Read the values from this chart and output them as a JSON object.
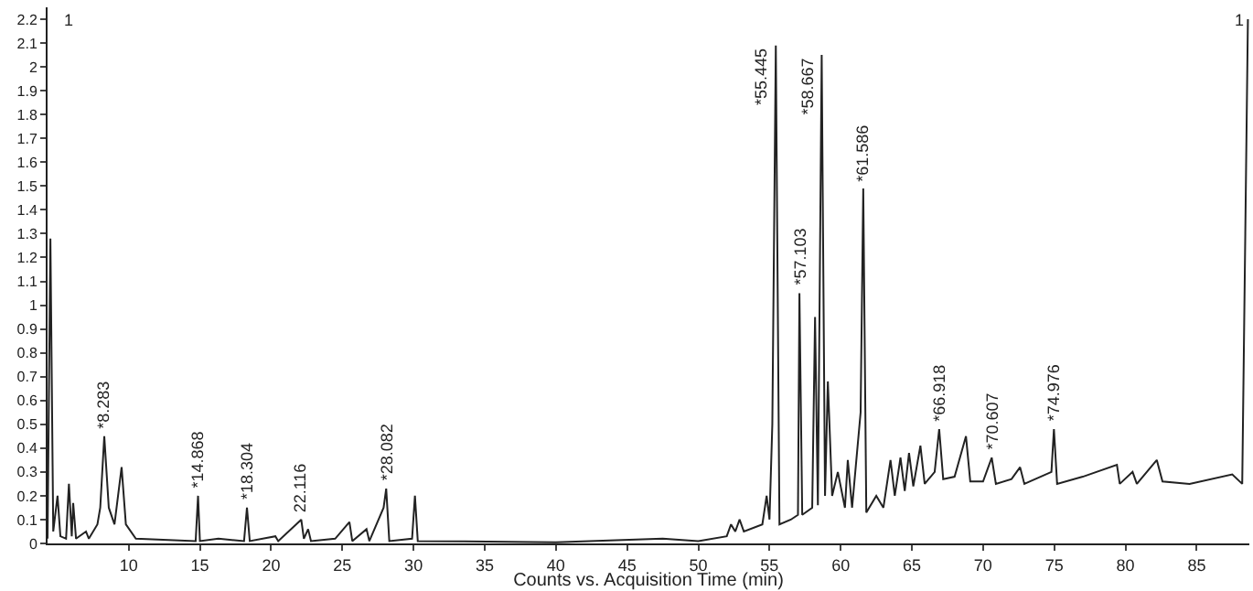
{
  "chart_data": {
    "type": "line",
    "xlabel": "Counts vs. Acquisition Time (min)",
    "x": [
      4.3,
      4.5,
      4.7,
      5.0,
      5.2,
      5.6,
      5.8,
      6.0,
      6.1,
      6.3,
      7.0,
      7.2,
      7.8,
      8.0,
      8.283,
      8.6,
      9.0,
      9.5,
      9.8,
      10.5,
      14.7,
      14.868,
      15.0,
      16.3,
      18.1,
      18.304,
      18.5,
      20.3,
      20.5,
      22.116,
      22.3,
      22.6,
      22.8,
      24.5,
      25.5,
      25.7,
      26.7,
      26.9,
      27.9,
      28.082,
      28.3,
      29.9,
      30.1,
      30.3,
      40,
      47.5,
      50,
      52,
      52.3,
      52.6,
      52.9,
      53.2,
      54.5,
      54.8,
      55.0,
      55.2,
      55.445,
      55.7,
      56.5,
      57.0,
      57.103,
      57.3,
      58.0,
      58.2,
      58.4,
      58.667,
      58.9,
      59.1,
      59.4,
      59.8,
      60.3,
      60.5,
      60.8,
      61.4,
      61.586,
      61.8,
      62.5,
      63.0,
      63.5,
      63.8,
      64.2,
      64.5,
      64.8,
      65.1,
      65.6,
      65.9,
      66.6,
      66.918,
      67.2,
      68.0,
      68.8,
      69.1,
      70.0,
      70.607,
      70.9,
      72.0,
      72.6,
      72.9,
      74.8,
      74.976,
      75.2,
      77,
      79.4,
      79.6,
      80.5,
      80.8,
      82.2,
      82.6,
      84.5,
      87.5,
      88.2,
      88.6
    ],
    "series": [
      {
        "color": "#222222",
        "values": [
          0.02,
          1.28,
          0.05,
          0.2,
          0.03,
          0.02,
          0.25,
          0.03,
          0.17,
          0.02,
          0.05,
          0.02,
          0.08,
          0.15,
          0.45,
          0.15,
          0.08,
          0.32,
          0.08,
          0.02,
          0.01,
          0.2,
          0.01,
          0.02,
          0.01,
          0.15,
          0.01,
          0.03,
          0.01,
          0.1,
          0.02,
          0.06,
          0.01,
          0.02,
          0.09,
          0.01,
          0.06,
          0.01,
          0.15,
          0.23,
          0.01,
          0.02,
          0.2,
          0.01,
          0.005,
          0.02,
          0.01,
          0.03,
          0.08,
          0.05,
          0.1,
          0.05,
          0.08,
          0.2,
          0.1,
          0.5,
          2.09,
          0.08,
          0.1,
          0.12,
          1.05,
          0.12,
          0.15,
          0.95,
          0.16,
          2.05,
          0.2,
          0.68,
          0.2,
          0.3,
          0.15,
          0.35,
          0.15,
          0.55,
          1.49,
          0.13,
          0.2,
          0.15,
          0.35,
          0.2,
          0.36,
          0.22,
          0.38,
          0.24,
          0.41,
          0.25,
          0.3,
          0.48,
          0.27,
          0.28,
          0.45,
          0.26,
          0.26,
          0.36,
          0.25,
          0.27,
          0.32,
          0.25,
          0.3,
          0.48,
          0.25,
          0.28,
          0.33,
          0.25,
          0.3,
          0.25,
          0.35,
          0.26,
          0.25,
          0.29,
          0.25,
          2.2
        ]
      }
    ],
    "xlim": [
      4.3,
      88.7
    ],
    "ylim": [
      0,
      2.25
    ],
    "xticks": [
      10,
      15,
      20,
      25,
      30,
      35,
      40,
      45,
      50,
      55,
      60,
      65,
      70,
      75,
      80,
      85
    ],
    "yticks": [
      0,
      0.1,
      0.2,
      0.3,
      0.4,
      0.5,
      0.6,
      0.7,
      0.8,
      0.9,
      1,
      1.1,
      1.2,
      1.3,
      1.4,
      1.5,
      1.6,
      1.7,
      1.8,
      1.9,
      2,
      2.1,
      2.2
    ],
    "grid": false,
    "marker": "none",
    "line_style": "solid",
    "annotations": [
      {
        "text": "*8.283",
        "x": 8.283,
        "y": 0.45
      },
      {
        "text": "*14.868",
        "x": 14.868,
        "y": 0.2
      },
      {
        "text": "*18.304",
        "x": 18.304,
        "y": 0.15
      },
      {
        "text": "22.116",
        "x": 22.116,
        "y": 0.1
      },
      {
        "text": "*28.082",
        "x": 28.082,
        "y": 0.23
      },
      {
        "text": "*55.445",
        "x": 55.445,
        "y": 2.09
      },
      {
        "text": "*57.103",
        "x": 57.103,
        "y": 1.05
      },
      {
        "text": "*58.667",
        "x": 58.667,
        "y": 2.05
      },
      {
        "text": "*61.586",
        "x": 61.586,
        "y": 1.49
      },
      {
        "text": "*66.918",
        "x": 66.918,
        "y": 0.48
      },
      {
        "text": "*70.607",
        "x": 70.607,
        "y": 0.36
      },
      {
        "text": "*74.976",
        "x": 74.976,
        "y": 0.48
      },
      "1",
      "1"
    ]
  }
}
